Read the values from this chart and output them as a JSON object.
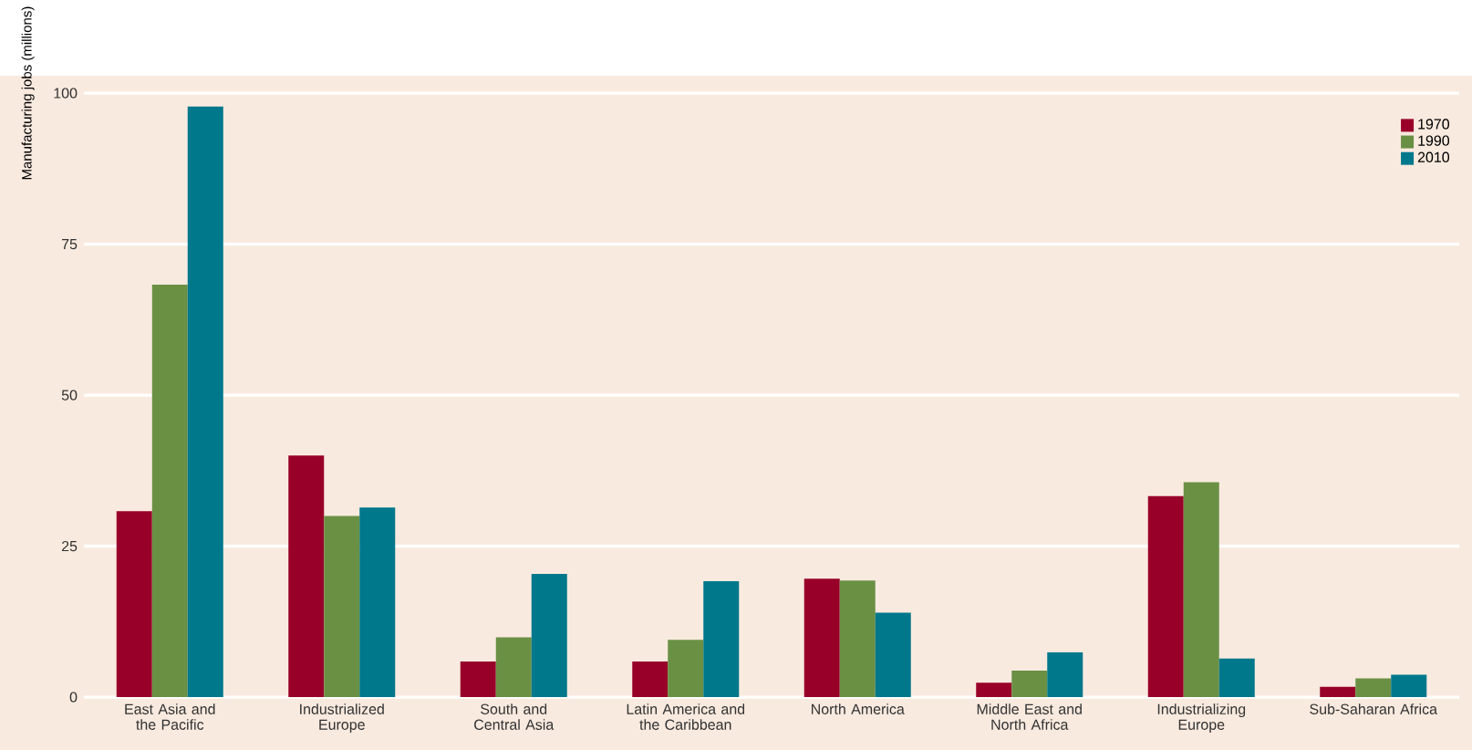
{
  "chart_data": {
    "type": "bar",
    "ylabel": "Manufacturing jobs (millions)",
    "categories": [
      "East Asia and the Pacific",
      "Industrialized Europe",
      "South and Central Asia",
      "Latin America and the Caribbean",
      "North America",
      "Middle East and North Africa",
      "Industrializing Europe",
      "Sub-Saharan Africa"
    ],
    "series": [
      {
        "name": "1970",
        "color": "#990029",
        "values": [
          30.8,
          40.0,
          5.9,
          5.9,
          19.6,
          2.4,
          33.3,
          1.7
        ]
      },
      {
        "name": "1990",
        "color": "#6a9044",
        "values": [
          68.3,
          30.0,
          9.9,
          9.5,
          19.3,
          4.4,
          35.6,
          3.1
        ]
      },
      {
        "name": "2010",
        "color": "#00788c",
        "values": [
          97.8,
          31.4,
          20.4,
          19.2,
          14.0,
          7.4,
          6.4,
          3.7
        ]
      }
    ],
    "ylim": [
      0,
      100
    ],
    "yticks": [
      0,
      25,
      50,
      75,
      100
    ],
    "grid": "y",
    "legend": "top right"
  }
}
